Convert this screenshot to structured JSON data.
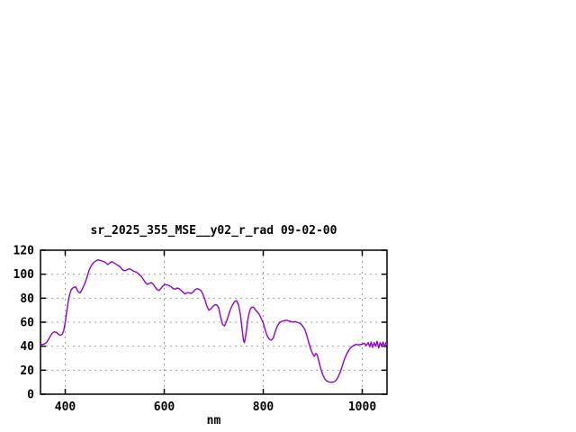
{
  "chart_data": {
    "type": "line",
    "title": "sr_2025_355_MSE__y02_r_rad 09-02-00",
    "xlabel": "nm",
    "ylabel": "",
    "xlim": [
      350,
      1050
    ],
    "ylim": [
      0,
      120
    ],
    "xticks": [
      400,
      600,
      800,
      1000
    ],
    "yticks": [
      0,
      20,
      40,
      60,
      80,
      100,
      120
    ],
    "grid": true,
    "legend_position": "none",
    "colors": {
      "line": "#9400d3",
      "grid": "#9e9e9e",
      "border": "#000000",
      "background": "#ffffff",
      "text": "#000000"
    },
    "series": [
      {
        "name": "sr_2025_355_MSE__y02_r_rad 09-02-00",
        "color": "#9400d3",
        "points": [
          [
            350,
            41
          ],
          [
            354,
            41.5
          ],
          [
            358,
            42
          ],
          [
            362,
            43
          ],
          [
            366,
            45.5
          ],
          [
            370,
            48.5
          ],
          [
            374,
            51
          ],
          [
            378,
            52
          ],
          [
            382,
            51.5
          ],
          [
            386,
            50
          ],
          [
            390,
            49
          ],
          [
            394,
            50
          ],
          [
            397,
            53
          ],
          [
            400,
            60
          ],
          [
            403,
            69
          ],
          [
            406,
            77
          ],
          [
            409,
            83
          ],
          [
            412,
            87
          ],
          [
            415,
            88.5
          ],
          [
            418,
            89
          ],
          [
            421,
            89.5
          ],
          [
            424,
            87
          ],
          [
            427,
            85
          ],
          [
            430,
            84.5
          ],
          [
            433,
            86.5
          ],
          [
            436,
            89
          ],
          [
            439,
            91.5
          ],
          [
            442,
            95
          ],
          [
            445,
            99
          ],
          [
            448,
            103
          ],
          [
            451,
            106
          ],
          [
            454,
            108
          ],
          [
            458,
            110
          ],
          [
            462,
            111
          ],
          [
            466,
            112
          ],
          [
            470,
            111.5
          ],
          [
            474,
            111
          ],
          [
            478,
            110.5
          ],
          [
            482,
            109.5
          ],
          [
            486,
            108
          ],
          [
            490,
            109.5
          ],
          [
            494,
            110.5
          ],
          [
            498,
            109.5
          ],
          [
            502,
            108.5
          ],
          [
            506,
            107.5
          ],
          [
            510,
            106.5
          ],
          [
            514,
            104.5
          ],
          [
            518,
            103
          ],
          [
            522,
            103
          ],
          [
            526,
            104
          ],
          [
            530,
            104.5
          ],
          [
            534,
            103.5
          ],
          [
            538,
            102.5
          ],
          [
            542,
            102
          ],
          [
            546,
            101
          ],
          [
            550,
            99.5
          ],
          [
            554,
            98
          ],
          [
            558,
            95.5
          ],
          [
            562,
            93
          ],
          [
            566,
            91.5
          ],
          [
            570,
            92.5
          ],
          [
            574,
            93
          ],
          [
            578,
            91.5
          ],
          [
            582,
            89
          ],
          [
            586,
            87
          ],
          [
            590,
            86.5
          ],
          [
            594,
            88.5
          ],
          [
            598,
            90.5
          ],
          [
            602,
            91.5
          ],
          [
            606,
            91
          ],
          [
            610,
            90.5
          ],
          [
            614,
            89.5
          ],
          [
            618,
            88
          ],
          [
            622,
            87.5
          ],
          [
            626,
            88.5
          ],
          [
            630,
            88
          ],
          [
            634,
            86.5
          ],
          [
            638,
            85
          ],
          [
            642,
            83.5
          ],
          [
            646,
            84.5
          ],
          [
            650,
            84.5
          ],
          [
            654,
            84
          ],
          [
            658,
            85
          ],
          [
            662,
            87
          ],
          [
            666,
            88
          ],
          [
            670,
            87.5
          ],
          [
            674,
            86.5
          ],
          [
            678,
            83.5
          ],
          [
            682,
            79
          ],
          [
            686,
            73.5
          ],
          [
            690,
            70
          ],
          [
            694,
            71
          ],
          [
            698,
            73
          ],
          [
            702,
            74.5
          ],
          [
            706,
            74.5
          ],
          [
            710,
            72
          ],
          [
            714,
            64
          ],
          [
            718,
            58
          ],
          [
            722,
            57
          ],
          [
            726,
            61
          ],
          [
            730,
            66
          ],
          [
            734,
            71
          ],
          [
            738,
            74.5
          ],
          [
            742,
            77
          ],
          [
            746,
            78
          ],
          [
            750,
            74.5
          ],
          [
            754,
            66
          ],
          [
            757,
            55
          ],
          [
            760,
            45
          ],
          [
            762,
            43
          ],
          [
            765,
            50
          ],
          [
            768,
            60
          ],
          [
            771,
            67
          ],
          [
            774,
            71
          ],
          [
            777,
            72.5
          ],
          [
            780,
            72.5
          ],
          [
            784,
            70.5
          ],
          [
            788,
            68.5
          ],
          [
            792,
            66.5
          ],
          [
            796,
            63
          ],
          [
            800,
            59.5
          ],
          [
            804,
            53.5
          ],
          [
            808,
            48.5
          ],
          [
            812,
            46
          ],
          [
            816,
            45
          ],
          [
            820,
            46.5
          ],
          [
            824,
            52
          ],
          [
            828,
            56.5
          ],
          [
            832,
            59
          ],
          [
            836,
            60.5
          ],
          [
            840,
            61
          ],
          [
            844,
            61.5
          ],
          [
            848,
            61.5
          ],
          [
            852,
            61
          ],
          [
            856,
            60.5
          ],
          [
            860,
            60
          ],
          [
            864,
            60.5
          ],
          [
            868,
            60
          ],
          [
            872,
            59.5
          ],
          [
            876,
            58.5
          ],
          [
            880,
            56.5
          ],
          [
            884,
            54
          ],
          [
            888,
            49
          ],
          [
            892,
            43
          ],
          [
            896,
            37.5
          ],
          [
            900,
            33.5
          ],
          [
            903,
            31.5
          ],
          [
            906,
            34
          ],
          [
            909,
            33
          ],
          [
            912,
            28
          ],
          [
            916,
            21.5
          ],
          [
            920,
            16.5
          ],
          [
            924,
            13
          ],
          [
            928,
            11
          ],
          [
            932,
            10.3
          ],
          [
            936,
            10
          ],
          [
            940,
            10
          ],
          [
            944,
            10.5
          ],
          [
            948,
            12
          ],
          [
            952,
            15
          ],
          [
            956,
            19
          ],
          [
            960,
            24
          ],
          [
            964,
            29
          ],
          [
            968,
            33
          ],
          [
            972,
            36
          ],
          [
            976,
            38.5
          ],
          [
            980,
            40
          ],
          [
            984,
            41
          ],
          [
            988,
            41.5
          ],
          [
            992,
            41
          ],
          [
            996,
            41.5
          ],
          [
            1000,
            41.5
          ],
          [
            1004,
            42.5
          ],
          [
            1008,
            40.5
          ],
          [
            1012,
            43
          ],
          [
            1015,
            39.5
          ],
          [
            1018,
            43.5
          ],
          [
            1021,
            39
          ],
          [
            1024,
            43
          ],
          [
            1027,
            40
          ],
          [
            1030,
            44
          ],
          [
            1033,
            38.5
          ],
          [
            1036,
            43
          ],
          [
            1039,
            40
          ],
          [
            1042,
            43.5
          ],
          [
            1045,
            39.5
          ],
          [
            1048,
            43
          ],
          [
            1050,
            41.5
          ]
        ]
      }
    ]
  }
}
